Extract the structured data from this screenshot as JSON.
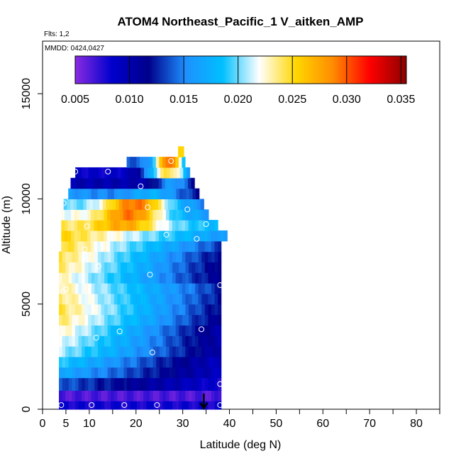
{
  "chart_data": {
    "type": "heatmap",
    "title": "ATOM4 Northeast_Pacific_1 V_aitken_AMP",
    "flights_label": "Flts: 1,2",
    "dates_label": "MMDD: 0424,0427",
    "xlabel": "Latitude (deg N)",
    "ylabel": "Altitude (m)",
    "xlim": [
      0,
      85
    ],
    "ylim": [
      0,
      17500
    ],
    "x_ticks": [
      0,
      5,
      10,
      20,
      30,
      40,
      50,
      60,
      70,
      80
    ],
    "y_ticks": [
      0,
      5000,
      10000,
      15000
    ],
    "colorbar": {
      "min": 0.005,
      "max": 0.0355,
      "ticks": [
        "0.005",
        "0.010",
        "0.015",
        "0.020",
        "0.025",
        "0.030",
        "0.035"
      ],
      "colors": [
        "#8a2be2",
        "#0000cd",
        "#00008b",
        "#1e90ff",
        "#00bfff",
        "#ffffff",
        "#ffd700",
        "#ff8c00",
        "#ff0000",
        "#8b0000"
      ]
    },
    "arrow_latitude": 34.5,
    "rows": [
      {
        "y0": 0,
        "y1": 400,
        "x0": 3.5,
        "x1": 38.2,
        "base": 0.008,
        "grad": 0.0,
        "hot": 0.0,
        "hx": 0,
        "hw": 1
      },
      {
        "y0": 400,
        "y1": 900,
        "x0": 3.5,
        "x1": 38.2,
        "base": 0.0065,
        "grad": 0.0,
        "hot": 0.0,
        "hx": 0,
        "hw": 1
      },
      {
        "y0": 900,
        "y1": 1500,
        "x0": 3.5,
        "x1": 38.2,
        "base": 0.014,
        "grad": -0.006,
        "hot": 0.0,
        "hx": 0,
        "hw": 1
      },
      {
        "y0": 1500,
        "y1": 2000,
        "x0": 3.5,
        "x1": 38.2,
        "base": 0.017,
        "grad": -0.008,
        "hot": 0.0,
        "hx": 0,
        "hw": 1
      },
      {
        "y0": 2000,
        "y1": 2500,
        "x0": 3.5,
        "x1": 38.2,
        "base": 0.019,
        "grad": -0.01,
        "hot": 0.0,
        "hx": 0,
        "hw": 1
      },
      {
        "y0": 2500,
        "y1": 3000,
        "x0": 3.5,
        "x1": 38.2,
        "base": 0.021,
        "grad": -0.011,
        "hot": 0.0,
        "hx": 0,
        "hw": 1
      },
      {
        "y0": 3000,
        "y1": 3500,
        "x0": 3.5,
        "x1": 38.2,
        "base": 0.022,
        "grad": -0.012,
        "hot": 0.0,
        "hx": 0,
        "hw": 1
      },
      {
        "y0": 3500,
        "y1": 4000,
        "x0": 3.5,
        "x1": 38.2,
        "base": 0.023,
        "grad": -0.013,
        "hot": 0.0,
        "hx": 0,
        "hw": 1
      },
      {
        "y0": 4000,
        "y1": 4500,
        "x0": 3.5,
        "x1": 38.2,
        "base": 0.024,
        "grad": -0.013,
        "hot": 0.0,
        "hx": 0,
        "hw": 1
      },
      {
        "y0": 4500,
        "y1": 5000,
        "x0": 3.5,
        "x1": 38.2,
        "base": 0.0245,
        "grad": -0.013,
        "hot": 0.0,
        "hx": 0,
        "hw": 1
      },
      {
        "y0": 5000,
        "y1": 5500,
        "x0": 3.5,
        "x1": 38.2,
        "base": 0.024,
        "grad": -0.012,
        "hot": 0.0,
        "hx": 0,
        "hw": 1
      },
      {
        "y0": 5500,
        "y1": 6000,
        "x0": 3.5,
        "x1": 38.2,
        "base": 0.0235,
        "grad": -0.011,
        "hot": 0.0,
        "hx": 0,
        "hw": 1
      },
      {
        "y0": 6000,
        "y1": 6500,
        "x0": 3.5,
        "x1": 38.2,
        "base": 0.023,
        "grad": -0.012,
        "hot": 0.0,
        "hx": 0,
        "hw": 1
      },
      {
        "y0": 6500,
        "y1": 7000,
        "x0": 3.5,
        "x1": 38.2,
        "base": 0.024,
        "grad": -0.013,
        "hot": 0.0,
        "hx": 0,
        "hw": 1
      },
      {
        "y0": 7000,
        "y1": 7500,
        "x0": 3.5,
        "x1": 38.2,
        "base": 0.0245,
        "grad": -0.013,
        "hot": 0.0,
        "hx": 0,
        "hw": 1
      },
      {
        "y0": 7500,
        "y1": 8000,
        "x0": 4,
        "x1": 38.2,
        "base": 0.025,
        "grad": -0.012,
        "hot": 0.0,
        "hx": 0,
        "hw": 1
      },
      {
        "y0": 8000,
        "y1": 8500,
        "x0": 4,
        "x1": 39.5,
        "base": 0.0255,
        "grad": -0.01,
        "hot": 0.0,
        "hx": 0,
        "hw": 1
      },
      {
        "y0": 8500,
        "y1": 9000,
        "x0": 4,
        "x1": 37.5,
        "base": 0.024,
        "grad": -0.006,
        "hot": 0.006,
        "hx": 18,
        "hw": 7
      },
      {
        "y0": 9000,
        "y1": 9500,
        "x0": 4,
        "x1": 35.5,
        "base": 0.022,
        "grad": -0.006,
        "hot": 0.01,
        "hx": 19,
        "hw": 7
      },
      {
        "y0": 9500,
        "y1": 10000,
        "x0": 4.5,
        "x1": 34.5,
        "base": 0.02,
        "grad": -0.005,
        "hot": 0.012,
        "hx": 20,
        "hw": 7
      },
      {
        "y0": 10000,
        "y1": 10500,
        "x0": 5.5,
        "x1": 33.5,
        "base": 0.016,
        "grad": -0.004,
        "hot": 0.004,
        "hx": 24,
        "hw": 6
      },
      {
        "y0": 10500,
        "y1": 11000,
        "x0": 6,
        "x1": 32.5,
        "base": 0.01,
        "grad": 0.0,
        "hot": 0.006,
        "hx": 28,
        "hw": 4
      },
      {
        "y0": 11000,
        "y1": 11500,
        "x0": 7,
        "x1": 31.5,
        "base": 0.0085,
        "grad": 0.0,
        "hot": 0.016,
        "hx": 27,
        "hw": 5
      },
      {
        "y0": 11500,
        "y1": 12000,
        "x0": 18,
        "x1": 30.5,
        "base": 0.014,
        "grad": 0.0,
        "hot": 0.016,
        "hx": 27,
        "hw": 3
      },
      {
        "y0": 12000,
        "y1": 12500,
        "x0": 29,
        "x1": 30.2,
        "base": 0.026,
        "grad": 0.0,
        "hot": 0.0,
        "hx": 0,
        "hw": 1
      }
    ],
    "points": [
      [
        4,
        200
      ],
      [
        10.5,
        200
      ],
      [
        17.5,
        200
      ],
      [
        24.5,
        200
      ],
      [
        38,
        200
      ],
      [
        38,
        1200
      ],
      [
        23.5,
        2700
      ],
      [
        11.5,
        3400
      ],
      [
        16.5,
        3700
      ],
      [
        34,
        3800
      ],
      [
        4.5,
        5600
      ],
      [
        5,
        5700
      ],
      [
        38,
        5900
      ],
      [
        23,
        6400
      ],
      [
        12,
        6800
      ],
      [
        9,
        7600
      ],
      [
        33,
        8100
      ],
      [
        26.5,
        8300
      ],
      [
        9.5,
        8700
      ],
      [
        35,
        8800
      ],
      [
        4.5,
        9800
      ],
      [
        22.5,
        9600
      ],
      [
        31,
        9500
      ],
      [
        21,
        10600
      ],
      [
        7,
        11300
      ],
      [
        14,
        11300
      ],
      [
        27.5,
        11800
      ]
    ]
  }
}
